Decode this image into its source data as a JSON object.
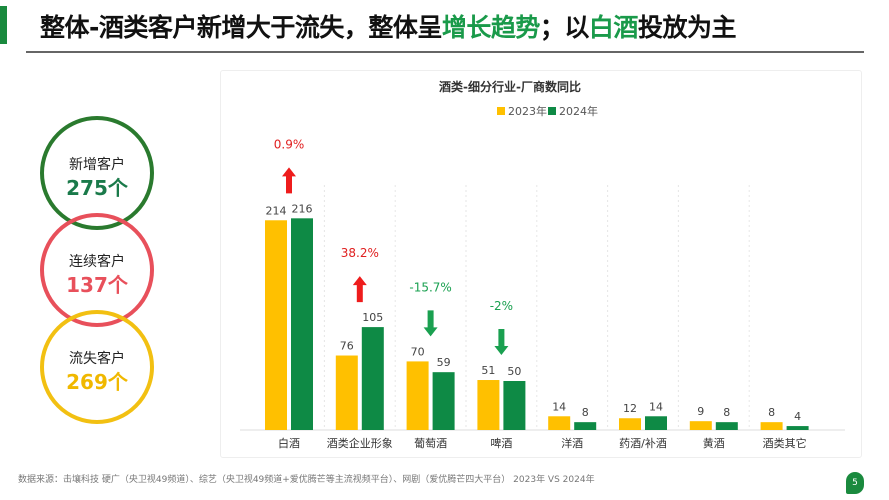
{
  "header": {
    "title_parts": [
      "整体-酒类客户新增大于流失，整体呈",
      "增长趋势",
      "；以",
      "白酒",
      "投放为主"
    ]
  },
  "summary": [
    {
      "label": "新增客户",
      "value": "275个",
      "color": "#2a7a2e",
      "value_color": "#1a7a4a"
    },
    {
      "label": "连续客户",
      "value": "137个",
      "color": "#e8505b",
      "value_color": "#e8505b"
    },
    {
      "label": "流失客户",
      "value": "269个",
      "color": "#f2c012",
      "value_color": "#f0b800"
    }
  ],
  "chart_data": {
    "type": "bar",
    "title": "酒类-细分行业-厂商数同比",
    "categories": [
      "白酒",
      "酒类企业形象",
      "葡萄酒",
      "啤酒",
      "洋酒",
      "药酒/补酒",
      "黄酒",
      "酒类其它"
    ],
    "series": [
      {
        "name": "2023年",
        "color": "#ffc000",
        "values": [
          214,
          76,
          70,
          51,
          14,
          12,
          9,
          8
        ]
      },
      {
        "name": "2024年",
        "color": "#0e8a45",
        "values": [
          216,
          105,
          59,
          50,
          8,
          14,
          8,
          4
        ]
      }
    ],
    "legend": "top-right",
    "grid": false,
    "ylim": [
      0,
      230
    ],
    "annotations": [
      {
        "category": "白酒",
        "text": "0.9%",
        "direction": "up",
        "color": "#e02020"
      },
      {
        "category": "酒类企业形象",
        "text": "38.2%",
        "direction": "up",
        "color": "#e02020"
      },
      {
        "category": "葡萄酒",
        "text": "-15.7%",
        "direction": "down",
        "color": "#1aa050"
      },
      {
        "category": "啤酒",
        "text": "-2%",
        "direction": "down",
        "color": "#1aa050"
      }
    ]
  },
  "footer": {
    "source": "数据来源：击壤科技  硬广（央卫视49频道）、综艺（央卫视49频道+爱优腾芒等主流视频平台）、网剧（爱优腾芒四大平台） 2023年 VS 2024年",
    "page": "5"
  }
}
